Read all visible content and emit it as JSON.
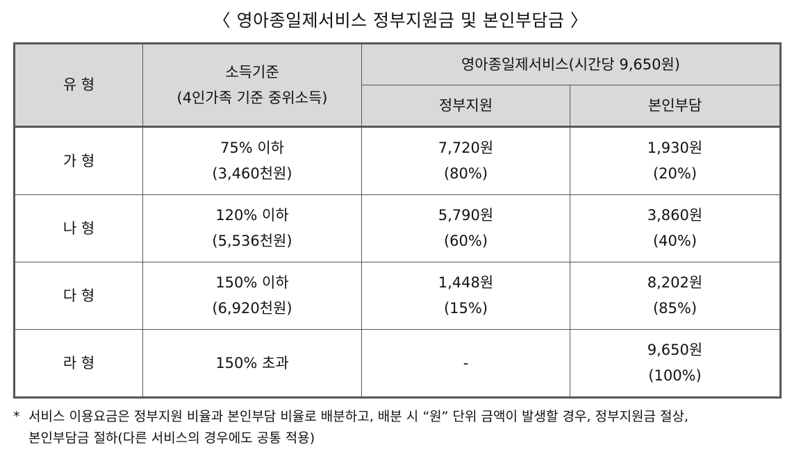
{
  "title": "〈 영아종일제서비스  정부지원금  및  본인부담금 〉",
  "table": {
    "header": {
      "type": "유 형",
      "income_line1": "소득기준",
      "income_line2": "(4인가족  기준  중위소득)",
      "service": "영아종일제서비스(시간당  9,650원)",
      "gov": "정부지원",
      "self": "본인부담"
    },
    "rows": [
      {
        "type": "가 형",
        "income1": "75%  이하",
        "income2": "(3,460천원)",
        "gov1": "7,720원",
        "gov2": "(80%)",
        "self1": "1,930원",
        "self2": "(20%)"
      },
      {
        "type": "나 형",
        "income1": "120%  이하",
        "income2": "(5,536천원)",
        "gov1": "5,790원",
        "gov2": "(60%)",
        "self1": "3,860원",
        "self2": "(40%)"
      },
      {
        "type": "다 형",
        "income1": "150%  이하",
        "income2": "(6,920천원)",
        "gov1": "1,448원",
        "gov2": "(15%)",
        "self1": "8,202원",
        "self2": "(85%)"
      },
      {
        "type": "라 형",
        "income1": "150%  초과",
        "income2": "",
        "gov1": "-",
        "gov2": "",
        "self1": "9,650원",
        "self2": "(100%)"
      }
    ]
  },
  "note": {
    "mark": "*",
    "line1": "서비스  이용요금은  정부지원  비율과  본인부담  비율로  배분하고,  배분  시  “원”  단위  금액이  발생할  경우,  정부지원금  절상,",
    "line2": "본인부담금  절하(다른  서비스의  경우에도  공통  적용)"
  }
}
